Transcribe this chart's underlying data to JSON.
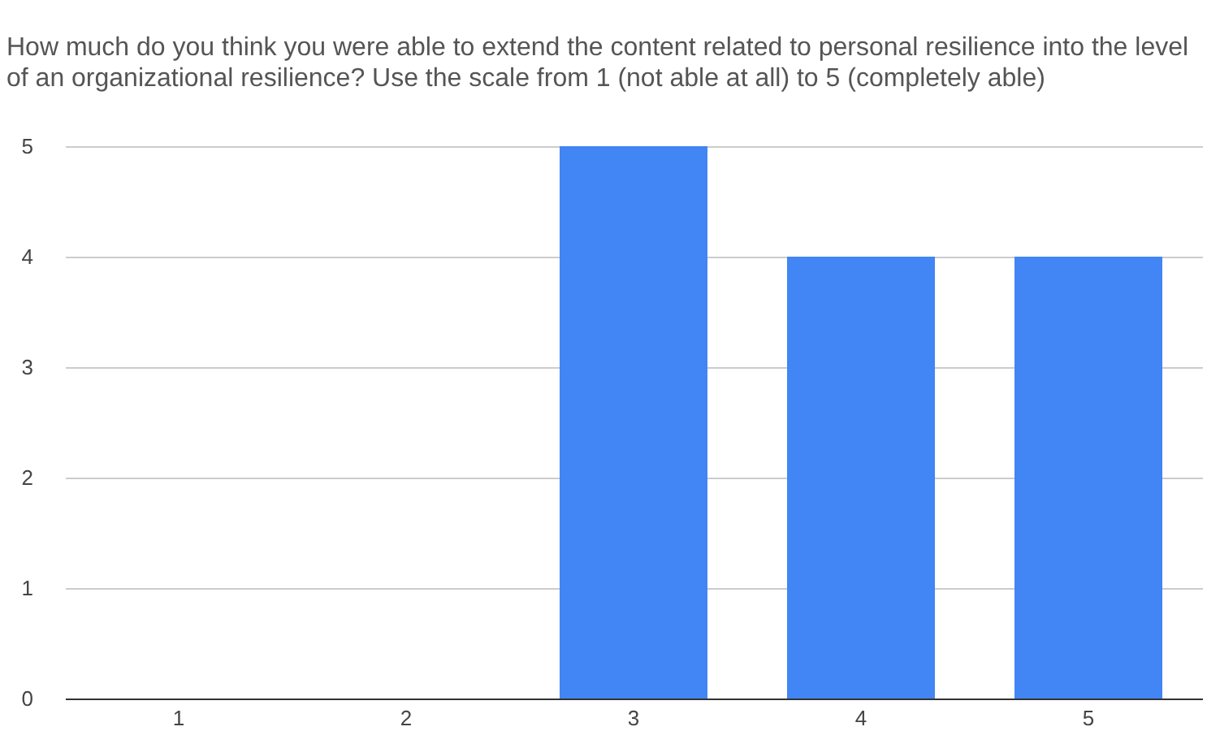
{
  "chart_data": {
    "type": "bar",
    "title": "How much do you think you were able to extend the content related to personal resilience into the level of an organizational resilience? Use the scale from 1 (not able at all) to 5 (completely able)",
    "categories": [
      "1",
      "2",
      "3",
      "4",
      "5"
    ],
    "values": [
      0,
      0,
      5,
      4,
      4
    ],
    "color": "#4285f4",
    "ylim": [
      0,
      5
    ],
    "yticks": [
      0,
      1,
      2,
      3,
      4,
      5
    ],
    "grid": "y"
  }
}
